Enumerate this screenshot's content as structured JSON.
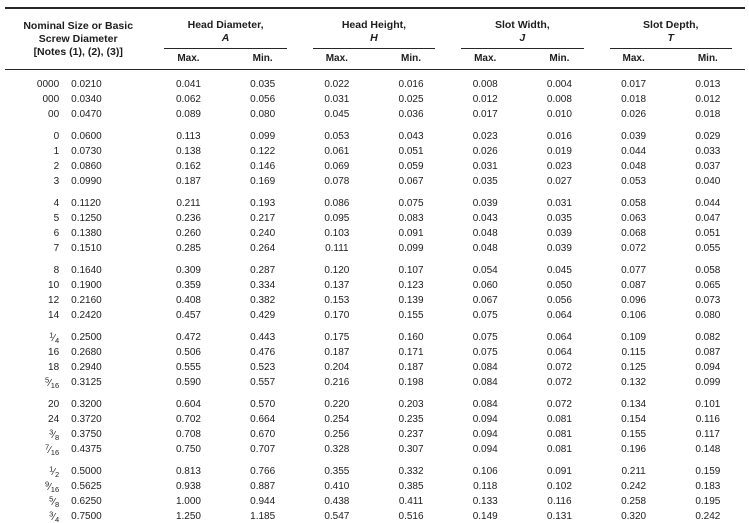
{
  "page": {
    "background_color": "#ffffff",
    "text_color": "#1d1d1d",
    "rule_color": "#262626"
  },
  "table": {
    "row_header": {
      "line1": "Nominal Size or Basic",
      "line2": "Screw Diameter",
      "line3": "[Notes (1), (2), (3)]"
    },
    "groups": [
      {
        "title": "Head Diameter,",
        "symbol": "A"
      },
      {
        "title": "Head Height,",
        "symbol": "H"
      },
      {
        "title": "Slot Width,",
        "symbol": "J"
      },
      {
        "title": "Slot Depth,",
        "symbol": "T"
      }
    ],
    "subheaders": [
      "Max.",
      "Min."
    ],
    "row_groups": [
      [
        {
          "size": "0000",
          "diameter": "0.0210",
          "values": [
            "0.041",
            "0.035",
            "0.022",
            "0.016",
            "0.008",
            "0.004",
            "0.017",
            "0.013"
          ]
        },
        {
          "size": "000",
          "diameter": "0.0340",
          "values": [
            "0.062",
            "0.056",
            "0.031",
            "0.025",
            "0.012",
            "0.008",
            "0.018",
            "0.012"
          ]
        },
        {
          "size": "00",
          "diameter": "0.0470",
          "values": [
            "0.089",
            "0.080",
            "0.045",
            "0.036",
            "0.017",
            "0.010",
            "0.026",
            "0.018"
          ]
        }
      ],
      [
        {
          "size": "0",
          "diameter": "0.0600",
          "values": [
            "0.113",
            "0.099",
            "0.053",
            "0.043",
            "0.023",
            "0.016",
            "0.039",
            "0.029"
          ]
        },
        {
          "size": "1",
          "diameter": "0.0730",
          "values": [
            "0.138",
            "0.122",
            "0.061",
            "0.051",
            "0.026",
            "0.019",
            "0.044",
            "0.033"
          ]
        },
        {
          "size": "2",
          "diameter": "0.0860",
          "values": [
            "0.162",
            "0.146",
            "0.069",
            "0.059",
            "0.031",
            "0.023",
            "0.048",
            "0.037"
          ]
        },
        {
          "size": "3",
          "diameter": "0.0990",
          "values": [
            "0.187",
            "0.169",
            "0.078",
            "0.067",
            "0.035",
            "0.027",
            "0.053",
            "0.040"
          ]
        }
      ],
      [
        {
          "size": "4",
          "diameter": "0.1120",
          "values": [
            "0.211",
            "0.193",
            "0.086",
            "0.075",
            "0.039",
            "0.031",
            "0.058",
            "0.044"
          ]
        },
        {
          "size": "5",
          "diameter": "0.1250",
          "values": [
            "0.236",
            "0.217",
            "0.095",
            "0.083",
            "0.043",
            "0.035",
            "0.063",
            "0.047"
          ]
        },
        {
          "size": "6",
          "diameter": "0.1380",
          "values": [
            "0.260",
            "0.240",
            "0.103",
            "0.091",
            "0.048",
            "0.039",
            "0.068",
            "0.051"
          ]
        },
        {
          "size": "7",
          "diameter": "0.1510",
          "values": [
            "0.285",
            "0.264",
            "0.111",
            "0.099",
            "0.048",
            "0.039",
            "0.072",
            "0.055"
          ]
        }
      ],
      [
        {
          "size": "8",
          "diameter": "0.1640",
          "values": [
            "0.309",
            "0.287",
            "0.120",
            "0.107",
            "0.054",
            "0.045",
            "0.077",
            "0.058"
          ]
        },
        {
          "size": "10",
          "diameter": "0.1900",
          "values": [
            "0.359",
            "0.334",
            "0.137",
            "0.123",
            "0.060",
            "0.050",
            "0.087",
            "0.065"
          ]
        },
        {
          "size": "12",
          "diameter": "0.2160",
          "values": [
            "0.408",
            "0.382",
            "0.153",
            "0.139",
            "0.067",
            "0.056",
            "0.096",
            "0.073"
          ]
        },
        {
          "size": "14",
          "diameter": "0.2420",
          "values": [
            "0.457",
            "0.429",
            "0.170",
            "0.155",
            "0.075",
            "0.064",
            "0.106",
            "0.080"
          ]
        }
      ],
      [
        {
          "size": "1/4",
          "diameter": "0.2500",
          "values": [
            "0.472",
            "0.443",
            "0.175",
            "0.160",
            "0.075",
            "0.064",
            "0.109",
            "0.082"
          ]
        },
        {
          "size": "16",
          "diameter": "0.2680",
          "values": [
            "0.506",
            "0.476",
            "0.187",
            "0.171",
            "0.075",
            "0.064",
            "0.115",
            "0.087"
          ]
        },
        {
          "size": "18",
          "diameter": "0.2940",
          "values": [
            "0.555",
            "0.523",
            "0.204",
            "0.187",
            "0.084",
            "0.072",
            "0.125",
            "0.094"
          ]
        },
        {
          "size": "5/16",
          "diameter": "0.3125",
          "values": [
            "0.590",
            "0.557",
            "0.216",
            "0.198",
            "0.084",
            "0.072",
            "0.132",
            "0.099"
          ]
        }
      ],
      [
        {
          "size": "20",
          "diameter": "0.3200",
          "values": [
            "0.604",
            "0.570",
            "0.220",
            "0.203",
            "0.084",
            "0.072",
            "0.134",
            "0.101"
          ]
        },
        {
          "size": "24",
          "diameter": "0.3720",
          "values": [
            "0.702",
            "0.664",
            "0.254",
            "0.235",
            "0.094",
            "0.081",
            "0.154",
            "0.116"
          ]
        },
        {
          "size": "3/8",
          "diameter": "0.3750",
          "values": [
            "0.708",
            "0.670",
            "0.256",
            "0.237",
            "0.094",
            "0.081",
            "0.155",
            "0.117"
          ]
        },
        {
          "size": "7/16",
          "diameter": "0.4375",
          "values": [
            "0.750",
            "0.707",
            "0.328",
            "0.307",
            "0.094",
            "0.081",
            "0.196",
            "0.148"
          ]
        }
      ],
      [
        {
          "size": "1/2",
          "diameter": "0.5000",
          "values": [
            "0.813",
            "0.766",
            "0.355",
            "0.332",
            "0.106",
            "0.091",
            "0.211",
            "0.159"
          ]
        },
        {
          "size": "9/16",
          "diameter": "0.5625",
          "values": [
            "0.938",
            "0.887",
            "0.410",
            "0.385",
            "0.118",
            "0.102",
            "0.242",
            "0.183"
          ]
        },
        {
          "size": "5/8",
          "diameter": "0.6250",
          "values": [
            "1.000",
            "0.944",
            "0.438",
            "0.411",
            "0.133",
            "0.116",
            "0.258",
            "0.195"
          ]
        },
        {
          "size": "3/4",
          "diameter": "0.7500",
          "values": [
            "1.250",
            "1.185",
            "0.547",
            "0.516",
            "0.149",
            "0.131",
            "0.320",
            "0.242"
          ]
        }
      ]
    ]
  }
}
